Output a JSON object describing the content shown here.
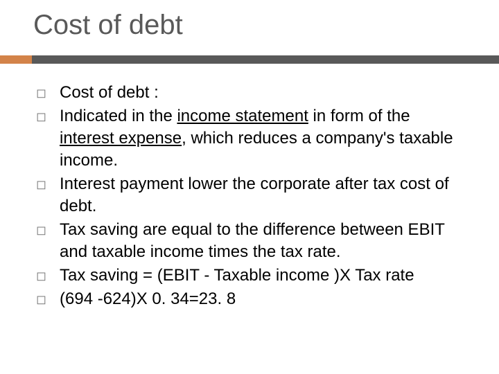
{
  "slide": {
    "title": "Cost of debt",
    "title_color": "#595959",
    "title_fontsize": 40,
    "accent_color": "#d38349",
    "rule_color": "#595959",
    "background_color": "#ffffff",
    "body_fontsize": 24,
    "body_lineheight": 32,
    "bullet_glyph": "◻",
    "bullet_color": "#777777",
    "bullets": [
      {
        "segments": [
          {
            "text": "Cost of debt :"
          }
        ]
      },
      {
        "segments": [
          {
            "text": "Indicated in the "
          },
          {
            "text": "income statement",
            "underline": true
          },
          {
            "text": " in form of the "
          },
          {
            "text": "interest expense",
            "underline": true
          },
          {
            "text": ", which reduces a company's taxable income."
          }
        ]
      },
      {
        "segments": [
          {
            "text": "Interest payment lower the corporate after tax cost of debt."
          }
        ]
      },
      {
        "segments": [
          {
            "text": "Tax saving are equal to the difference between EBIT and taxable income times the tax rate."
          }
        ]
      },
      {
        "segments": [
          {
            "text": "Tax saving = (EBIT - Taxable income )X Tax rate"
          }
        ]
      },
      {
        "segments": [
          {
            "text": " (694 -624)X 0. 34=23. 8"
          }
        ]
      }
    ]
  }
}
